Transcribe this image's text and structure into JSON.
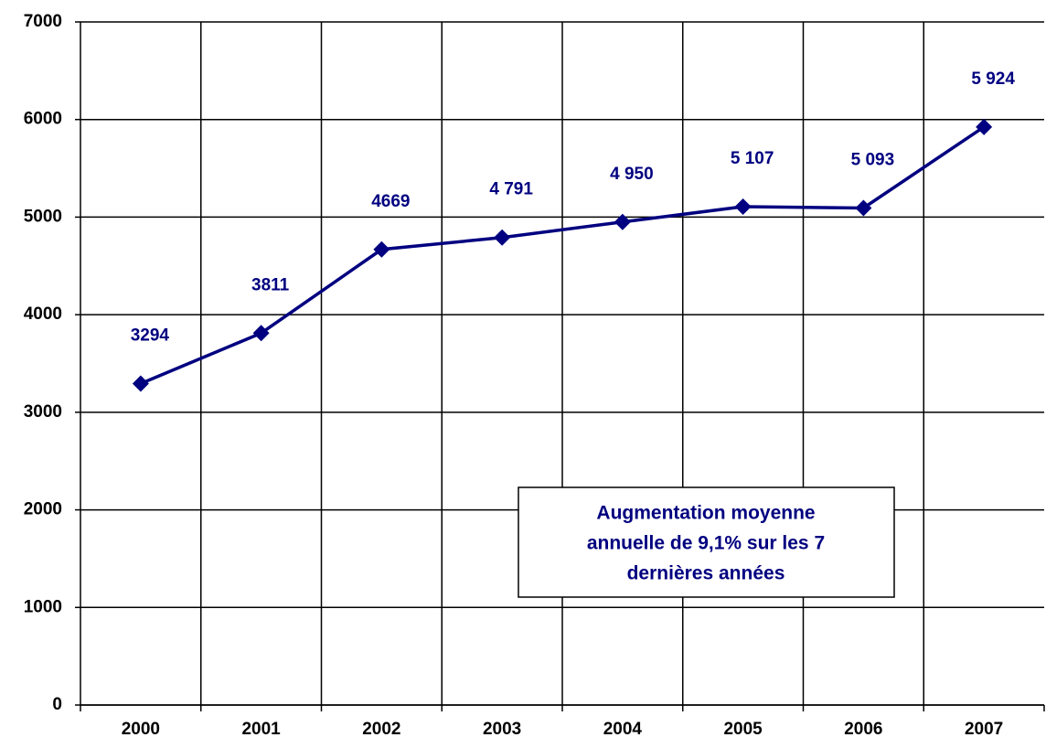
{
  "chart_data": {
    "type": "line",
    "categories": [
      "2000",
      "2001",
      "2002",
      "2003",
      "2004",
      "2005",
      "2006",
      "2007"
    ],
    "series": [
      {
        "color": "#000080",
        "values": [
          3294,
          3811,
          4669,
          4791,
          4950,
          5107,
          5093,
          5924
        ],
        "value_labels": [
          "3294",
          "3811",
          "4669",
          "4 791",
          "4 950",
          "5 107",
          "5 093",
          "5 924"
        ]
      }
    ],
    "ylim": [
      0,
      7000
    ],
    "yticks": [
      0,
      1000,
      2000,
      3000,
      4000,
      5000,
      6000,
      7000
    ],
    "grid": true,
    "annotation": [
      "Augmentation moyenne",
      "annuelle de 9,1% sur les 7",
      "dernières années"
    ]
  }
}
